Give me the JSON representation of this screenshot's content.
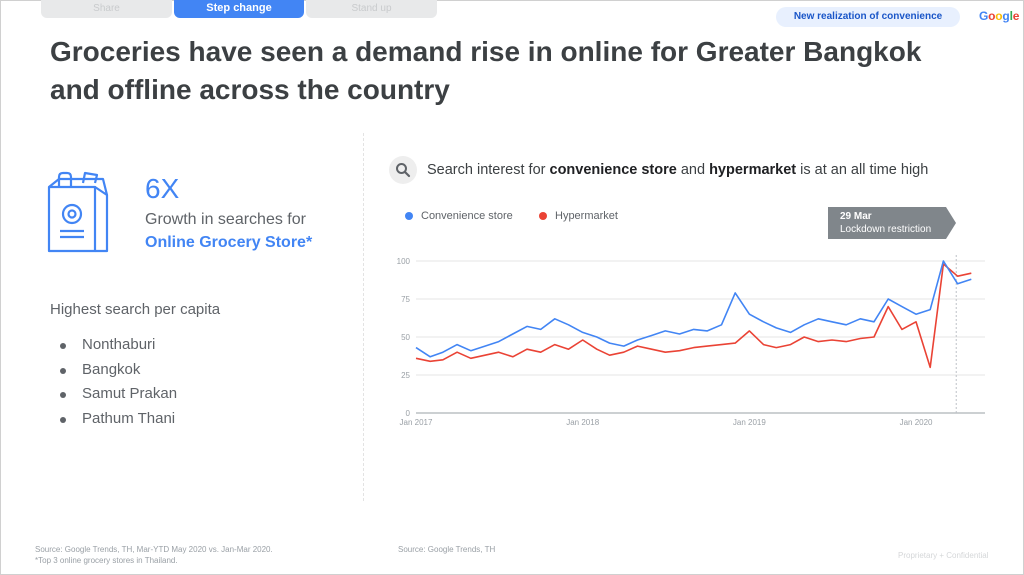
{
  "tabs": [
    {
      "label": "Share"
    },
    {
      "label": "Step change"
    },
    {
      "label": "Stand up"
    }
  ],
  "header_pill": "New realization of convenience",
  "brand": "Google",
  "title_line1": "Groceries have seen a demand rise in online for Greater Bangkok",
  "title_line2": "and offline across the country",
  "stat": {
    "number": "6X",
    "line": "Growth in searches for",
    "highlight": "Online Grocery Store*"
  },
  "per_capita": {
    "heading": "Highest search per capita",
    "items": [
      "Nonthaburi",
      "Bangkok",
      "Samut Prakan",
      "Pathum Thani"
    ]
  },
  "chart_heading": {
    "pre": "Search interest for ",
    "b1": "convenience store",
    "mid": " and ",
    "b2": "hypermarket",
    "post": " is at an all time high"
  },
  "colors": {
    "blue": "#4285f4",
    "red": "#ea4335",
    "annotation": "#80868b"
  },
  "icons": {
    "search": "search-icon",
    "bag": "grocery-bag-icon"
  },
  "chart_data": {
    "type": "line",
    "title": "Search interest for convenience store and hypermarket is at an all time high",
    "xlabel": "",
    "ylabel": "",
    "ylim": [
      0,
      100
    ],
    "yticks": [
      "100",
      "75",
      "50",
      "25",
      "0"
    ],
    "xticks": [
      "Jan 2017",
      "Jan 2018",
      "Jan 2019",
      "Jan 2020"
    ],
    "x_start": "2017-01-01",
    "x_end": "2020-05-31",
    "legend": "top-left",
    "grid": true,
    "series": [
      {
        "name": "Convenience store",
        "color": "#4285f4",
        "points": [
          [
            "2017-01-01",
            43
          ],
          [
            "2017-02-01",
            37
          ],
          [
            "2017-03-01",
            40
          ],
          [
            "2017-04-01",
            45
          ],
          [
            "2017-05-01",
            41
          ],
          [
            "2017-06-01",
            44
          ],
          [
            "2017-07-01",
            47
          ],
          [
            "2017-08-01",
            52
          ],
          [
            "2017-09-01",
            57
          ],
          [
            "2017-10-01",
            55
          ],
          [
            "2017-11-01",
            62
          ],
          [
            "2017-12-01",
            58
          ],
          [
            "2018-01-01",
            53
          ],
          [
            "2018-02-01",
            50
          ],
          [
            "2018-03-01",
            46
          ],
          [
            "2018-04-01",
            44
          ],
          [
            "2018-05-01",
            48
          ],
          [
            "2018-06-01",
            51
          ],
          [
            "2018-07-01",
            54
          ],
          [
            "2018-08-01",
            52
          ],
          [
            "2018-09-01",
            55
          ],
          [
            "2018-10-01",
            54
          ],
          [
            "2018-11-01",
            58
          ],
          [
            "2018-12-01",
            79
          ],
          [
            "2019-01-01",
            65
          ],
          [
            "2019-02-01",
            60
          ],
          [
            "2019-03-01",
            56
          ],
          [
            "2019-04-01",
            53
          ],
          [
            "2019-05-01",
            58
          ],
          [
            "2019-06-01",
            62
          ],
          [
            "2019-07-01",
            60
          ],
          [
            "2019-08-01",
            58
          ],
          [
            "2019-09-01",
            62
          ],
          [
            "2019-10-01",
            60
          ],
          [
            "2019-11-01",
            75
          ],
          [
            "2019-12-01",
            70
          ],
          [
            "2020-01-01",
            65
          ],
          [
            "2020-02-01",
            68
          ],
          [
            "2020-03-01",
            100
          ],
          [
            "2020-04-01",
            85
          ],
          [
            "2020-05-01",
            88
          ]
        ]
      },
      {
        "name": "Hypermarket",
        "color": "#ea4335",
        "points": [
          [
            "2017-01-01",
            36
          ],
          [
            "2017-02-01",
            34
          ],
          [
            "2017-03-01",
            35
          ],
          [
            "2017-04-01",
            40
          ],
          [
            "2017-05-01",
            36
          ],
          [
            "2017-06-01",
            38
          ],
          [
            "2017-07-01",
            40
          ],
          [
            "2017-08-01",
            37
          ],
          [
            "2017-09-01",
            42
          ],
          [
            "2017-10-01",
            40
          ],
          [
            "2017-11-01",
            45
          ],
          [
            "2017-12-01",
            42
          ],
          [
            "2018-01-01",
            48
          ],
          [
            "2018-02-01",
            42
          ],
          [
            "2018-03-01",
            38
          ],
          [
            "2018-04-01",
            40
          ],
          [
            "2018-05-01",
            44
          ],
          [
            "2018-06-01",
            42
          ],
          [
            "2018-07-01",
            40
          ],
          [
            "2018-08-01",
            41
          ],
          [
            "2018-09-01",
            43
          ],
          [
            "2018-10-01",
            44
          ],
          [
            "2018-11-01",
            45
          ],
          [
            "2018-12-01",
            46
          ],
          [
            "2019-01-01",
            54
          ],
          [
            "2019-02-01",
            45
          ],
          [
            "2019-03-01",
            43
          ],
          [
            "2019-04-01",
            45
          ],
          [
            "2019-05-01",
            50
          ],
          [
            "2019-06-01",
            47
          ],
          [
            "2019-07-01",
            48
          ],
          [
            "2019-08-01",
            47
          ],
          [
            "2019-09-01",
            49
          ],
          [
            "2019-10-01",
            50
          ],
          [
            "2019-11-01",
            70
          ],
          [
            "2019-12-01",
            55
          ],
          [
            "2020-01-01",
            60
          ],
          [
            "2020-02-01",
            30
          ],
          [
            "2020-03-01",
            98
          ],
          [
            "2020-04-01",
            90
          ],
          [
            "2020-05-01",
            92
          ]
        ]
      }
    ],
    "annotation": {
      "date": "2020-03-29",
      "label": "29 Mar",
      "text": "Lockdown restriction"
    }
  },
  "source_left_1": "Source: Google Trends, TH, Mar-YTD May 2020 vs. Jan-Mar 2020.",
  "source_left_2": "*Top 3 online grocery stores in Thailand.",
  "source_right": "Source: Google Trends, TH",
  "footer": "Proprietary + Confidential"
}
